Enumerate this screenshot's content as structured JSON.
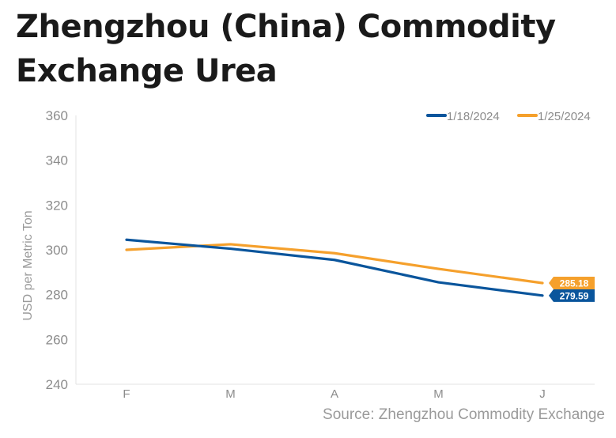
{
  "title": "Zhengzhou (China) Commodity Exchange Urea",
  "source": "Source: Zhengzhou Commodity Exchange",
  "chart_data": {
    "type": "line",
    "title": "Zhengzhou (China) Commodity Exchange Urea",
    "ylabel": "USD per Metric Ton",
    "xlabel": "",
    "categories": [
      "F",
      "M",
      "A",
      "M",
      "J"
    ],
    "ylim": [
      240,
      360
    ],
    "yticks": [
      240,
      260,
      280,
      300,
      320,
      340,
      360
    ],
    "grid": false,
    "legend_position": "top-right",
    "series": [
      {
        "name": "1/18/2024",
        "color": "#0a559c",
        "values": [
          304.5,
          300.5,
          295.5,
          285.5,
          279.59
        ],
        "end_label": "279.59"
      },
      {
        "name": "1/25/2024",
        "color": "#f5a02c",
        "values": [
          300.0,
          302.5,
          298.5,
          291.5,
          285.18
        ],
        "end_label": "285.18"
      }
    ]
  }
}
